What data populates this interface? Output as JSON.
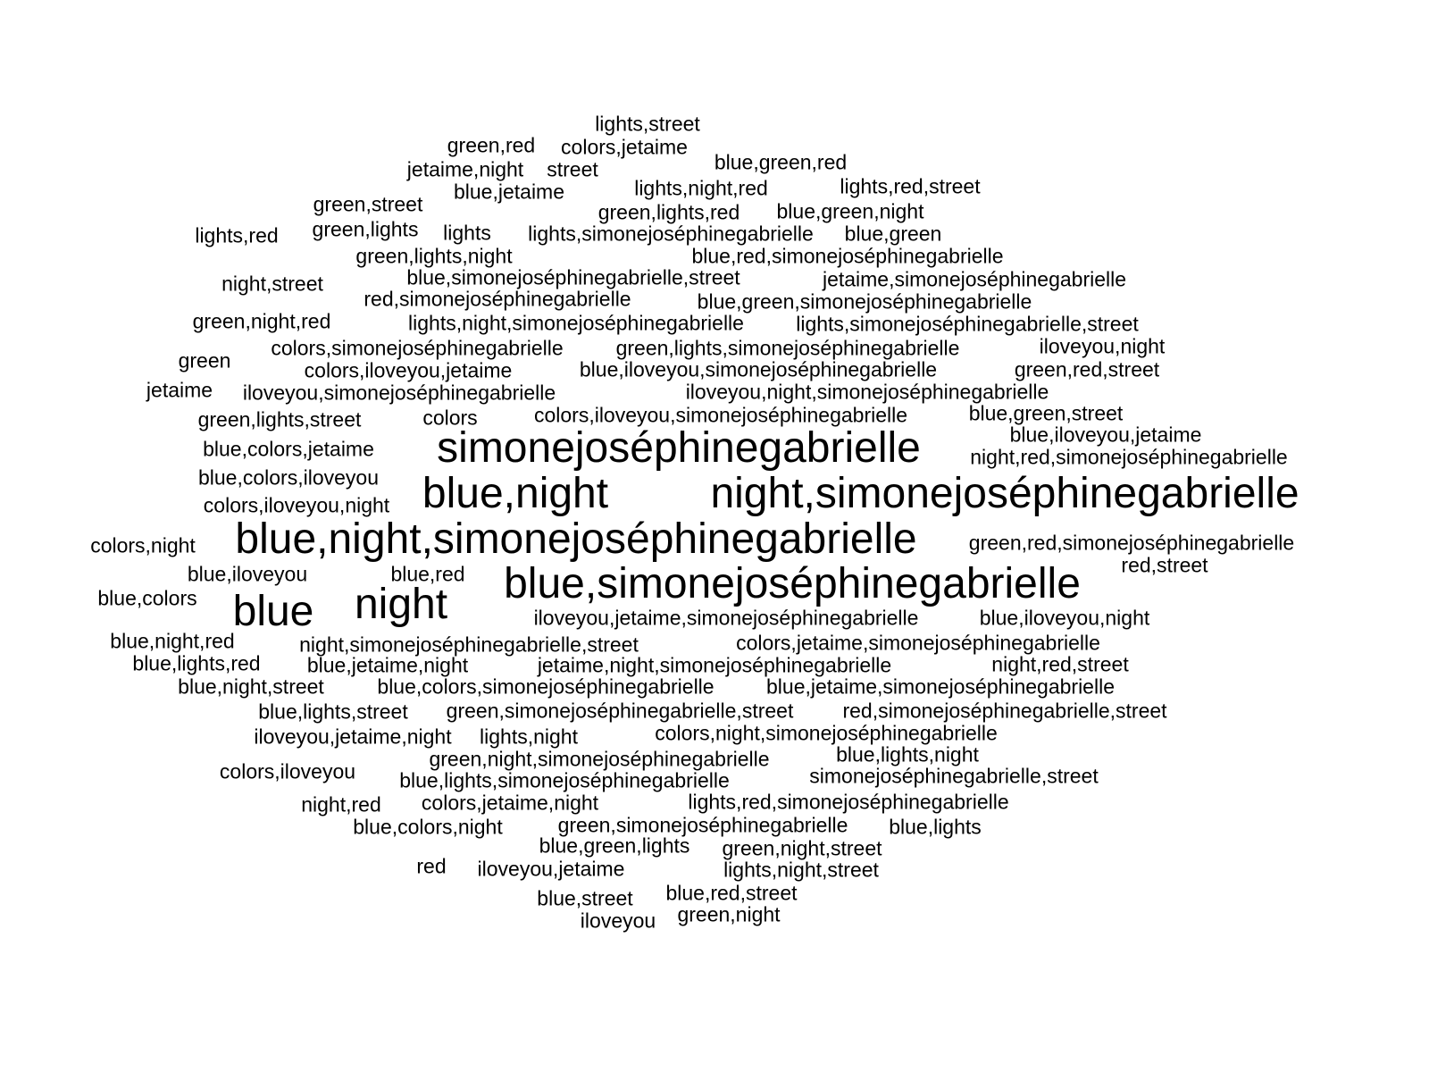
{
  "text_color": "#000000",
  "background": "#ffffff",
  "words": [
    {
      "text": "lights,street",
      "weight": 1
    },
    {
      "text": "green,red",
      "weight": 1
    },
    {
      "text": "colors,jetaime",
      "weight": 1
    },
    {
      "text": "jetaime,night",
      "weight": 1
    },
    {
      "text": "street",
      "weight": 1
    },
    {
      "text": "blue,green,red",
      "weight": 1
    },
    {
      "text": "blue,jetaime",
      "weight": 1
    },
    {
      "text": "lights,night,red",
      "weight": 1
    },
    {
      "text": "lights,red,street",
      "weight": 1
    },
    {
      "text": "green,street",
      "weight": 1
    },
    {
      "text": "green,lights,red",
      "weight": 1
    },
    {
      "text": "blue,green,night",
      "weight": 1
    },
    {
      "text": "lights,red",
      "weight": 1
    },
    {
      "text": "green,lights",
      "weight": 1
    },
    {
      "text": "lights",
      "weight": 1
    },
    {
      "text": "lights,simonejoséphinegabrielle",
      "weight": 1
    },
    {
      "text": "blue,green",
      "weight": 1
    },
    {
      "text": "green,lights,night",
      "weight": 1
    },
    {
      "text": "blue,red,simonejoséphinegabrielle",
      "weight": 1
    },
    {
      "text": "blue,simonejoséphinegabrielle,street",
      "weight": 1
    },
    {
      "text": "jetaime,simonejoséphinegabrielle",
      "weight": 1
    },
    {
      "text": "night,street",
      "weight": 1
    },
    {
      "text": "red,simonejoséphinegabrielle",
      "weight": 1
    },
    {
      "text": "blue,green,simonejoséphinegabrielle",
      "weight": 1
    },
    {
      "text": "green,night,red",
      "weight": 1
    },
    {
      "text": "lights,night,simonejoséphinegabrielle",
      "weight": 1
    },
    {
      "text": "lights,simonejoséphinegabrielle,street",
      "weight": 1
    },
    {
      "text": "colors,simonejoséphinegabrielle",
      "weight": 1
    },
    {
      "text": "green,lights,simonejoséphinegabrielle",
      "weight": 1
    },
    {
      "text": "iloveyou,night",
      "weight": 1
    },
    {
      "text": "green",
      "weight": 1
    },
    {
      "text": "colors,iloveyou,jetaime",
      "weight": 1
    },
    {
      "text": "blue,iloveyou,simonejoséphinegabrielle",
      "weight": 1
    },
    {
      "text": "green,red,street",
      "weight": 1
    },
    {
      "text": "jetaime",
      "weight": 1
    },
    {
      "text": "iloveyou,simonejoséphinegabrielle",
      "weight": 1
    },
    {
      "text": "iloveyou,night,simonejoséphinegabrielle",
      "weight": 1
    },
    {
      "text": "green,lights,street",
      "weight": 1
    },
    {
      "text": "colors",
      "weight": 1
    },
    {
      "text": "colors,iloveyou,simonejoséphinegabrielle",
      "weight": 1
    },
    {
      "text": "blue,green,street",
      "weight": 1
    },
    {
      "text": "simonejoséphinegabrielle",
      "weight": 3
    },
    {
      "text": "blue,iloveyou,jetaime",
      "weight": 1
    },
    {
      "text": "blue,colors,jetaime",
      "weight": 1
    },
    {
      "text": "night,red,simonejoséphinegabrielle",
      "weight": 1
    },
    {
      "text": "blue,colors,iloveyou",
      "weight": 1
    },
    {
      "text": "blue,night",
      "weight": 3
    },
    {
      "text": "night,simonejoséphinegabrielle",
      "weight": 3
    },
    {
      "text": "colors,iloveyou,night",
      "weight": 1
    },
    {
      "text": "colors,night",
      "weight": 1
    },
    {
      "text": "blue,night,simonejoséphinegabrielle",
      "weight": 3
    },
    {
      "text": "green,red,simonejoséphinegabrielle",
      "weight": 1
    },
    {
      "text": "blue,iloveyou",
      "weight": 1
    },
    {
      "text": "blue,red",
      "weight": 1
    },
    {
      "text": "red,street",
      "weight": 1
    },
    {
      "text": "blue,simonejoséphinegabrielle",
      "weight": 3
    },
    {
      "text": "blue,colors",
      "weight": 1
    },
    {
      "text": "blue",
      "weight": 3
    },
    {
      "text": "night",
      "weight": 3
    },
    {
      "text": "iloveyou,jetaime,simonejoséphinegabrielle",
      "weight": 1
    },
    {
      "text": "blue,iloveyou,night",
      "weight": 1
    },
    {
      "text": "blue,night,red",
      "weight": 1
    },
    {
      "text": "night,simonejoséphinegabrielle,street",
      "weight": 1
    },
    {
      "text": "colors,jetaime,simonejoséphinegabrielle",
      "weight": 1
    },
    {
      "text": "blue,lights,red",
      "weight": 1
    },
    {
      "text": "blue,jetaime,night",
      "weight": 1
    },
    {
      "text": "jetaime,night,simonejoséphinegabrielle",
      "weight": 1
    },
    {
      "text": "night,red,street",
      "weight": 1
    },
    {
      "text": "blue,night,street",
      "weight": 1
    },
    {
      "text": "blue,colors,simonejoséphinegabrielle",
      "weight": 1
    },
    {
      "text": "blue,jetaime,simonejoséphinegabrielle",
      "weight": 1
    },
    {
      "text": "blue,lights,street",
      "weight": 1
    },
    {
      "text": "green,simonejoséphinegabrielle,street",
      "weight": 1
    },
    {
      "text": "red,simonejoséphinegabrielle,street",
      "weight": 1
    },
    {
      "text": "iloveyou,jetaime,night",
      "weight": 1
    },
    {
      "text": "lights,night",
      "weight": 1
    },
    {
      "text": "colors,night,simonejoséphinegabrielle",
      "weight": 1
    },
    {
      "text": "green,night,simonejoséphinegabrielle",
      "weight": 1
    },
    {
      "text": "blue,lights,night",
      "weight": 1
    },
    {
      "text": "colors,iloveyou",
      "weight": 1
    },
    {
      "text": "blue,lights,simonejoséphinegabrielle",
      "weight": 1
    },
    {
      "text": "simonejoséphinegabrielle,street",
      "weight": 1
    },
    {
      "text": "night,red",
      "weight": 1
    },
    {
      "text": "colors,jetaime,night",
      "weight": 1
    },
    {
      "text": "lights,red,simonejoséphinegabrielle",
      "weight": 1
    },
    {
      "text": "blue,colors,night",
      "weight": 1
    },
    {
      "text": "green,simonejoséphinegabrielle",
      "weight": 1
    },
    {
      "text": "blue,lights",
      "weight": 1
    },
    {
      "text": "blue,green,lights",
      "weight": 1
    },
    {
      "text": "green,night,street",
      "weight": 1
    },
    {
      "text": "red",
      "weight": 1
    },
    {
      "text": "iloveyou,jetaime",
      "weight": 1
    },
    {
      "text": "lights,night,street",
      "weight": 1
    },
    {
      "text": "blue,street",
      "weight": 1
    },
    {
      "text": "blue,red,street",
      "weight": 1
    },
    {
      "text": "iloveyou",
      "weight": 1
    },
    {
      "text": "green,night",
      "weight": 1
    }
  ]
}
